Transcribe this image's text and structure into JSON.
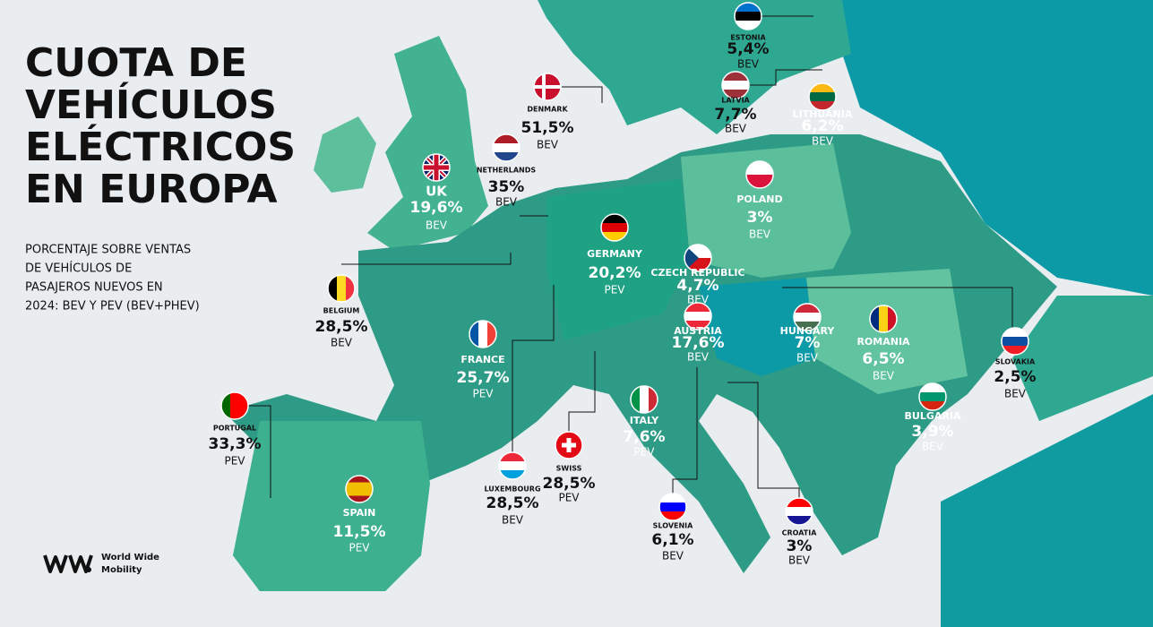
{
  "title": [
    "CUOTA DE",
    "VEHÍCULOS",
    "ELÉCTRICOS",
    "EN EUROPA"
  ],
  "subtitle": [
    "PORCENTAJE SOBRE VENTAS",
    "DE VEHÍCULOS DE",
    "PASAJEROS NUEVOS EN",
    "2024: BEV Y PEV (BEV+PHEV)"
  ],
  "countries": [
    {
      "name": "ESTONIA",
      "share": "5,4%",
      "kind": "BEV"
    },
    {
      "name": "DENMARK",
      "share": "51,5%",
      "kind": "BEV"
    },
    {
      "name": "NETHERLANDS",
      "share": "35%",
      "kind": "BEV"
    },
    {
      "name": "UK",
      "share": "19,6%",
      "kind": "BEV"
    },
    {
      "name": "LATVIA",
      "share": "7,7%",
      "kind": "BEV"
    },
    {
      "name": "LITHUANIA",
      "share": "6,2%",
      "kind": "BEV"
    },
    {
      "name": "POLAND",
      "share": "3%",
      "kind": "BEV"
    },
    {
      "name": "GERMANY",
      "share": "20,2%",
      "kind": "PEV"
    },
    {
      "name": "CZECH REPUBLIC",
      "share": "4,7%",
      "kind": "BEV"
    },
    {
      "name": "BELGIUM",
      "share": "28,5%",
      "kind": "BEV"
    },
    {
      "name": "AUSTRIA",
      "share": "17,6%",
      "kind": "BEV"
    },
    {
      "name": "HUNGARY",
      "share": "7%",
      "kind": "BEV"
    },
    {
      "name": "ROMANIA",
      "share": "6,5%",
      "kind": "BEV"
    },
    {
      "name": "SLOVAKIA",
      "share": "2,5%",
      "kind": "BEV"
    },
    {
      "name": "FRANCE",
      "share": "25,7%",
      "kind": "PEV"
    },
    {
      "name": "PORTUGAL",
      "share": "33,3%",
      "kind": "PEV"
    },
    {
      "name": "ITALY",
      "share": "7,6%",
      "kind": "PEV"
    },
    {
      "name": "BULGARIA",
      "share": "3,9%",
      "kind": "BEV"
    },
    {
      "name": "SWISS",
      "share": "28,5%",
      "kind": "PEV"
    },
    {
      "name": "LUXEMBOURG",
      "share": "28,5%",
      "kind": "BEV"
    },
    {
      "name": "SPAIN",
      "share": "11,5%",
      "kind": "PEV"
    },
    {
      "name": "SLOVENIA",
      "share": "6,1%",
      "kind": "BEV"
    },
    {
      "name": "CROATIA",
      "share": "3%",
      "kind": "BEV"
    }
  ],
  "brand": [
    "World Wide",
    "Mobility"
  ]
}
